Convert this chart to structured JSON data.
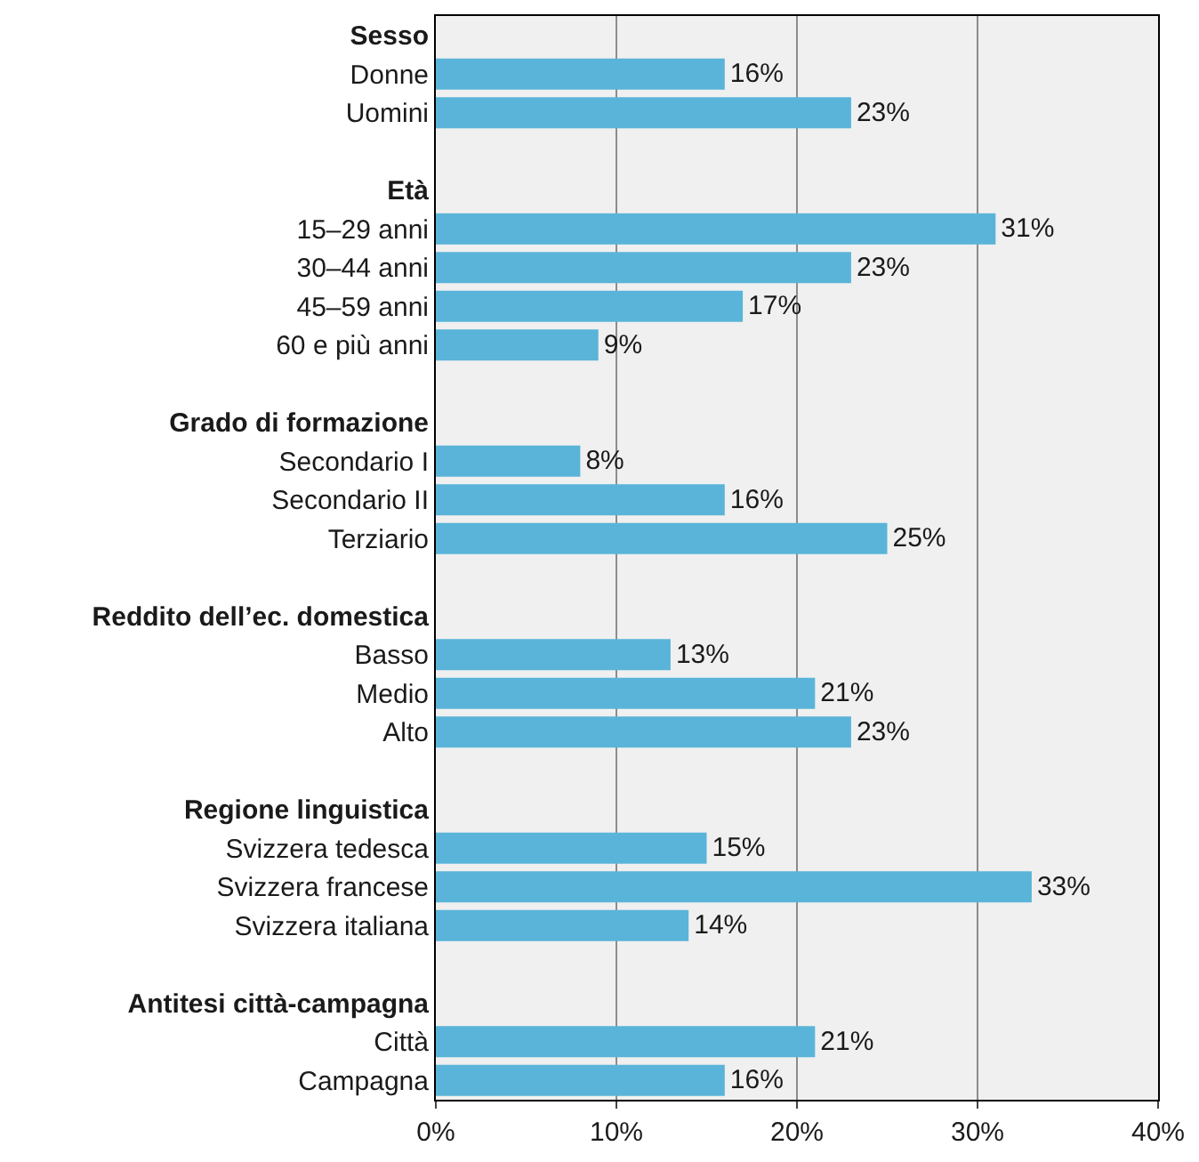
{
  "chart_data": {
    "type": "bar",
    "orientation": "horizontal",
    "categories": [
      "Sesso",
      "Donne",
      "Uomini",
      null,
      "Età",
      "15–29 anni",
      "30–44 anni",
      "45–59 anni",
      "60 e più anni",
      null,
      "Grado di formazione",
      "Secondario I",
      "Secondario II",
      "Terziario",
      null,
      "Reddito dell’ec. domestica",
      "Basso",
      "Medio",
      "Alto",
      null,
      "Regione linguistica",
      "Svizzera tedesca",
      "Svizzera francese",
      "Svizzera italiana",
      null,
      "Antitesi città-campagna",
      "Città",
      "Campagna"
    ],
    "values": [
      null,
      16,
      23,
      null,
      null,
      31,
      23,
      17,
      9,
      null,
      null,
      8,
      16,
      25,
      null,
      null,
      13,
      21,
      23,
      null,
      null,
      15,
      33,
      14,
      null,
      null,
      21,
      16
    ],
    "value_labels": [
      null,
      "16%",
      "23%",
      null,
      null,
      "31%",
      "23%",
      "17%",
      "9%",
      null,
      null,
      "8%",
      "16%",
      "25%",
      null,
      null,
      "13%",
      "21%",
      "23%",
      null,
      null,
      "15%",
      "33%",
      "14%",
      null,
      null,
      "21%",
      "16%"
    ],
    "color": "#5ab4d9",
    "xlim": [
      0,
      40
    ],
    "xticks": [
      {
        "value": 0,
        "label": "0%"
      },
      {
        "value": 10,
        "label": "10%"
      },
      {
        "value": 20,
        "label": "20%"
      },
      {
        "value": 30,
        "label": "30%"
      },
      {
        "value": 40,
        "label": "40%"
      }
    ],
    "grid": "x",
    "legend": false
  }
}
